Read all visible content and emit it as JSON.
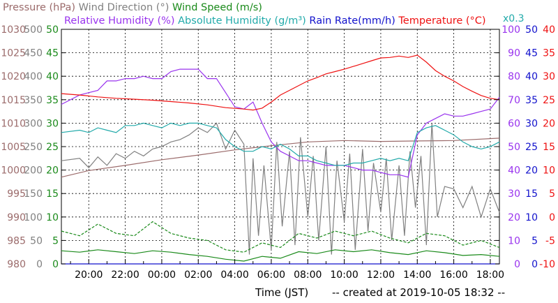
{
  "chart_data": {
    "type": "line",
    "title_row1": [
      {
        "text": "Pressure (hPa)",
        "color": "#9b6b6b"
      },
      {
        "text": "Wind Direction (°)",
        "color": "#808080"
      },
      {
        "text": "Wind Speed (m/s)",
        "color": "#1a8a1a"
      }
    ],
    "title_row2": [
      {
        "text": "Relative Humidity (%)",
        "color": "#9933ee"
      },
      {
        "text": "Absolute Humidity (g/m³)",
        "color": "#22aaaa"
      },
      {
        "text": "Rain Rate(mm/h)",
        "color": "#1111cc"
      },
      {
        "text": "Temperature (°C)",
        "color": "#ee1111"
      }
    ],
    "abs_humidity_scale_note": "x0.3",
    "xlabel": "Time (JST)",
    "footer": "-- created at 2019-10-05 18:32 --",
    "x_ticks": [
      "20:00",
      "22:00",
      "00:00",
      "02:00",
      "04:00",
      "06:00",
      "08:00",
      "10:00",
      "12:00",
      "14:00",
      "16:00",
      "18:00"
    ],
    "x_range_hours_from_2019_10_04_19_00": [
      -0.5,
      23.5
    ],
    "axes": {
      "pressure": {
        "color": "#9b6b6b",
        "ticks": [
          "980",
          "985",
          "990",
          "995",
          "1000",
          "1005",
          "1010",
          "1015",
          "1020",
          "1025",
          "1030"
        ],
        "ylim": [
          980,
          1030
        ]
      },
      "wind_direction": {
        "color": "#808080",
        "ticks": [
          "0",
          "50",
          "100",
          "150",
          "200",
          "250",
          "300",
          "350",
          "400",
          "450",
          "500"
        ],
        "ylim": [
          0,
          500
        ]
      },
      "wind_speed": {
        "color": "#1a8a1a",
        "ticks": [
          "0",
          "5",
          "10",
          "15",
          "20",
          "25",
          "30",
          "35",
          "40",
          "45",
          "50"
        ],
        "ylim": [
          0,
          50
        ]
      },
      "relative_humidity": {
        "color": "#9933ee",
        "ticks": [
          "0",
          "10",
          "20",
          "30",
          "40",
          "50",
          "60",
          "70",
          "80",
          "90",
          "100"
        ],
        "ylim": [
          0,
          100
        ]
      },
      "rain_rate": {
        "color": "#1111cc",
        "ticks": [
          "0",
          "5",
          "10",
          "15",
          "20",
          "25",
          "30",
          "35",
          "40",
          "45",
          "50"
        ],
        "ylim": [
          0,
          50
        ]
      },
      "temperature": {
        "color": "#ee1111",
        "ticks": [
          "-10",
          "-5",
          "0",
          "5",
          "10",
          "15",
          "20",
          "25",
          "30",
          "35",
          "40"
        ],
        "ylim": [
          -10,
          40
        ]
      }
    },
    "grid": true,
    "series": [
      {
        "name": "Pressure (hPa)",
        "axis": "pressure",
        "color": "#9b6b6b",
        "x": [
          -0.5,
          1,
          3,
          5,
          7,
          9,
          11,
          13,
          15,
          17,
          19,
          21,
          23.5
        ],
        "values": [
          998.5,
          999.9,
          1001,
          1002.2,
          1003.2,
          1004.3,
          1005.2,
          1006,
          1006.3,
          1006.1,
          1006.2,
          1006.3,
          1006.8
        ]
      },
      {
        "name": "Wind Direction (°)",
        "axis": "wind_direction",
        "color": "#808080",
        "x": [
          -0.5,
          0.5,
          1,
          1.5,
          2,
          2.5,
          3,
          3.5,
          4,
          4.5,
          5,
          5.5,
          6,
          6.5,
          7,
          7.5,
          8,
          8.5,
          9,
          9.5,
          9.8,
          10,
          10.3,
          10.6,
          11,
          11.3,
          11.6,
          12,
          12.3,
          12.6,
          13,
          13.3,
          13.6,
          14,
          14.3,
          14.6,
          15,
          15.3,
          15.6,
          16,
          16.3,
          16.6,
          17,
          17.3,
          17.6,
          18,
          18.3,
          18.6,
          18.9,
          19.2,
          19.5,
          19.8,
          20.1,
          20.5,
          21,
          21.5,
          22,
          22.5,
          23,
          23.5
        ],
        "values": [
          220,
          225,
          205,
          228,
          210,
          235,
          225,
          240,
          230,
          245,
          250,
          260,
          265,
          275,
          290,
          280,
          300,
          245,
          285,
          255,
          20,
          225,
          60,
          210,
          30,
          260,
          80,
          240,
          40,
          270,
          100,
          230,
          50,
          250,
          20,
          220,
          90,
          235,
          30,
          245,
          70,
          215,
          110,
          225,
          50,
          210,
          60,
          240,
          120,
          230,
          40,
          300,
          100,
          165,
          160,
          120,
          165,
          100,
          160,
          110
        ]
      },
      {
        "name": "Wind Speed (m/s)",
        "axis": "wind_speed",
        "color": "#1a8a1a",
        "x": [
          -0.5,
          0.5,
          1.5,
          2.5,
          3.5,
          4.5,
          5.5,
          6.5,
          7.5,
          8.5,
          9.5,
          10.5,
          11.5,
          12.5,
          13.5,
          14.5,
          15.5,
          16.5,
          17.5,
          18.5,
          19.5,
          20.5,
          21.5,
          22.5,
          23.5
        ],
        "values": [
          2.8,
          2.5,
          3.0,
          2.6,
          2.2,
          2.8,
          2.5,
          2.0,
          1.6,
          1.0,
          0.6,
          1.6,
          1.2,
          2.6,
          2.2,
          3.0,
          2.6,
          3.0,
          2.4,
          2.0,
          2.8,
          2.4,
          1.8,
          2.0,
          1.6
        ]
      },
      {
        "name": "Wind Speed gust (m/s)",
        "axis": "wind_speed",
        "color": "#1a8a1a",
        "dashed": true,
        "x": [
          -0.5,
          0.5,
          1.5,
          2.5,
          3.5,
          4.5,
          5.5,
          6.5,
          7.5,
          8.5,
          9.5,
          10.5,
          11.5,
          12.5,
          13.5,
          14.5,
          15.5,
          16.5,
          17.5,
          18.5,
          19.5,
          20.5,
          21.5,
          22.5,
          23.5
        ],
        "values": [
          7.0,
          6.0,
          8.5,
          6.5,
          6.0,
          9.0,
          6.5,
          5.5,
          5.0,
          3.0,
          2.5,
          4.5,
          3.5,
          6.5,
          5.5,
          7.0,
          6.0,
          7.0,
          5.5,
          4.5,
          6.5,
          6.0,
          4.0,
          5.0,
          3.5
        ]
      },
      {
        "name": "Relative Humidity (%)",
        "axis": "relative_humidity",
        "color": "#9933ee",
        "x": [
          -0.5,
          0.5,
          1,
          1.5,
          2,
          2.5,
          3,
          3.5,
          4,
          4.5,
          5,
          5.5,
          6,
          6.5,
          7,
          7.5,
          8,
          8.5,
          9,
          9.5,
          10,
          10.5,
          11,
          11.5,
          12,
          12.5,
          13,
          13.5,
          14,
          14.5,
          15,
          15.5,
          16,
          16.5,
          17,
          17.5,
          18,
          18.5,
          19,
          19.5,
          20,
          20.5,
          21,
          21.5,
          22,
          22.5,
          23,
          23.5
        ],
        "values": [
          68,
          72,
          73,
          74,
          78,
          78,
          79,
          79,
          80,
          79,
          79,
          82,
          83,
          83,
          83,
          79,
          79,
          73,
          67,
          66,
          69,
          60,
          52,
          48,
          46,
          44,
          44,
          43,
          42,
          42,
          42,
          41,
          40,
          40,
          39,
          38,
          38,
          37,
          55,
          60,
          62,
          64,
          63,
          63,
          64,
          65,
          66,
          71
        ]
      },
      {
        "name": "Absolute Humidity (g/m³) x0.3",
        "axis": "relative_humidity",
        "color": "#22aaaa",
        "x": [
          -0.5,
          0.5,
          1,
          1.5,
          2,
          2.5,
          3,
          3.5,
          4,
          4.5,
          5,
          5.5,
          6,
          6.5,
          7,
          7.5,
          8,
          8.5,
          9,
          9.5,
          10,
          10.5,
          11,
          11.5,
          12,
          12.5,
          13,
          13.5,
          14,
          14.5,
          15,
          15.5,
          16,
          16.5,
          17,
          17.5,
          18,
          18.5,
          19,
          19.5,
          20,
          20.5,
          21,
          21.5,
          22,
          22.5,
          23,
          23.5
        ],
        "values": [
          56,
          57,
          56,
          58,
          57,
          56,
          59,
          59,
          60,
          59,
          58,
          60,
          59,
          60,
          60,
          59,
          58,
          53,
          50,
          48,
          48,
          50,
          49,
          51,
          49,
          46,
          46,
          44,
          43,
          42,
          42,
          43,
          43,
          44,
          45,
          44,
          45,
          44,
          56,
          58,
          59,
          57,
          55,
          52,
          50,
          49,
          50,
          52
        ]
      },
      {
        "name": "Rain Rate(mm/h)",
        "axis": "rain_rate",
        "color": "#1111cc",
        "x": [
          -0.5,
          23.5
        ],
        "values": [
          0,
          0
        ]
      },
      {
        "name": "Temperature (°C)",
        "axis": "temperature",
        "color": "#ee1111",
        "x": [
          -0.5,
          0.5,
          1.5,
          2.5,
          3.5,
          4.5,
          5.5,
          6.5,
          7.5,
          8.5,
          9.5,
          10,
          10.5,
          11,
          11.5,
          12,
          12.5,
          13,
          13.5,
          14,
          14.5,
          15,
          15.5,
          16,
          16.5,
          17,
          17.5,
          18,
          18.5,
          19,
          19.5,
          20,
          20.5,
          21,
          21.5,
          22,
          22.5,
          23,
          23.5
        ],
        "values": [
          26.3,
          26.0,
          25.6,
          25.3,
          25.1,
          24.9,
          24.6,
          24.3,
          23.9,
          23.3,
          23.0,
          22.8,
          23.2,
          24.5,
          26.0,
          27.0,
          28.0,
          29.0,
          29.7,
          30.5,
          31.0,
          31.5,
          32.1,
          32.7,
          33.3,
          33.9,
          34.0,
          34.3,
          34.0,
          34.5,
          33.0,
          31.2,
          30.0,
          29.0,
          27.8,
          26.8,
          25.9,
          25.3,
          25.0
        ]
      }
    ]
  }
}
